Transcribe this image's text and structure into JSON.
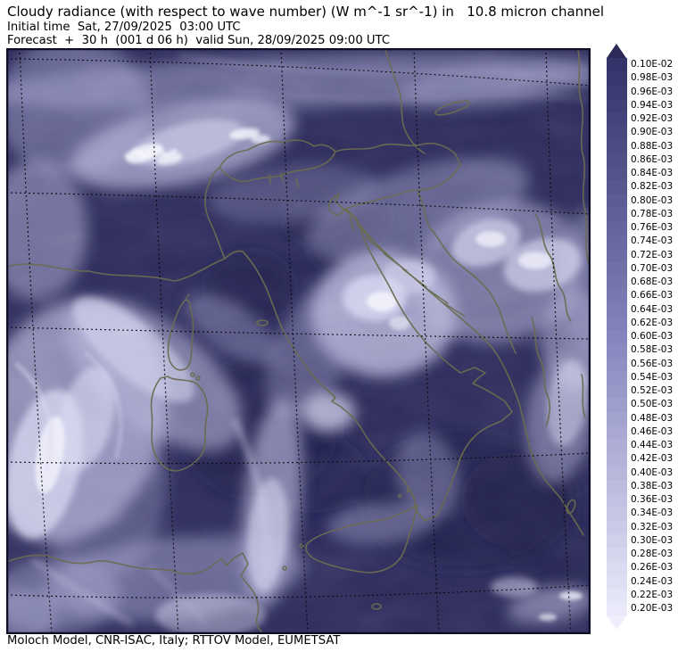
{
  "header": {
    "title": "Cloudy radiance (with respect to wave number) (W m^-1 sr^-1) in   10.8 micron channel",
    "initial_time_line": "Initial time  Sat, 27/09/2025  03:00 UTC",
    "forecast_line": "Forecast  +  30 h  (001 d 06 h)  valid Sun, 28/09/2025 09:00 UTC"
  },
  "footer": {
    "credit": "Moloch Model, CNR-ISAC, Italy; RTTOV Model, EUMETSAT"
  },
  "colorbar": {
    "labels": [
      "0.10E-02",
      "0.98E-03",
      "0.96E-03",
      "0.94E-03",
      "0.92E-03",
      "0.90E-03",
      "0.88E-03",
      "0.86E-03",
      "0.84E-03",
      "0.82E-03",
      "0.80E-03",
      "0.78E-03",
      "0.76E-03",
      "0.74E-03",
      "0.72E-03",
      "0.70E-03",
      "0.68E-03",
      "0.66E-03",
      "0.64E-03",
      "0.62E-03",
      "0.60E-03",
      "0.58E-03",
      "0.56E-03",
      "0.54E-03",
      "0.52E-03",
      "0.50E-03",
      "0.48E-03",
      "0.46E-03",
      "0.44E-03",
      "0.42E-03",
      "0.40E-03",
      "0.38E-03",
      "0.36E-03",
      "0.34E-03",
      "0.32E-03",
      "0.30E-03",
      "0.28E-03",
      "0.26E-03",
      "0.24E-03",
      "0.22E-03",
      "0.20E-03"
    ],
    "top_color": "#34336a",
    "mid_color": "#8585bd",
    "bottom_color": "#e9e9fa",
    "arrow_top_color": "#2b2a58",
    "arrow_bottom_color": "#eeeefc"
  },
  "map_colors": {
    "base": "#2e2d5c",
    "dark_sea": "#20204a",
    "cloud_light": "#c6c6e8",
    "cloud_white": "#f2f2fc",
    "coastline": "#6c6c52",
    "graticule": "#0a0a12",
    "border": "#0e0e24"
  }
}
